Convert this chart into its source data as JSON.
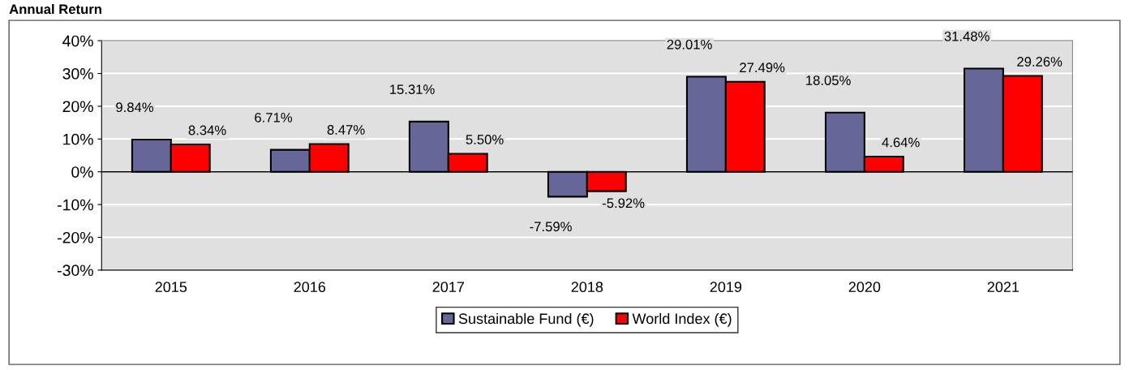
{
  "chart_data": {
    "type": "bar",
    "title": "Annual Return",
    "categories": [
      "2015",
      "2016",
      "2017",
      "2018",
      "2019",
      "2020",
      "2021"
    ],
    "series": [
      {
        "name": "Sustainable Fund (€)",
        "color": "#666699",
        "values": [
          9.84,
          6.71,
          15.31,
          -7.59,
          29.01,
          18.05,
          31.48
        ],
        "value_labels": [
          "9.84%",
          "6.71%",
          "15.31%",
          "-7.59%",
          "29.01%",
          "18.05%",
          "31.48%"
        ]
      },
      {
        "name": "World Index (€)",
        "color": "#ff0000",
        "values": [
          8.34,
          8.47,
          5.5,
          -5.92,
          27.49,
          4.64,
          29.26
        ],
        "value_labels": [
          "8.34%",
          "8.47%",
          "5.50%",
          "-5.92%",
          "27.49%",
          "4.64%",
          "29.26%"
        ]
      }
    ],
    "ylim": [
      -30,
      40
    ],
    "yticks": [
      {
        "value": -30,
        "label": "-30%"
      },
      {
        "value": -20,
        "label": "-20%"
      },
      {
        "value": -10,
        "label": "-10%"
      },
      {
        "value": 0,
        "label": "0%"
      },
      {
        "value": 10,
        "label": "10%"
      },
      {
        "value": 20,
        "label": "20%"
      },
      {
        "value": 30,
        "label": "30%"
      },
      {
        "value": 40,
        "label": "40%"
      }
    ],
    "grid": "y",
    "legend": "bottom"
  }
}
